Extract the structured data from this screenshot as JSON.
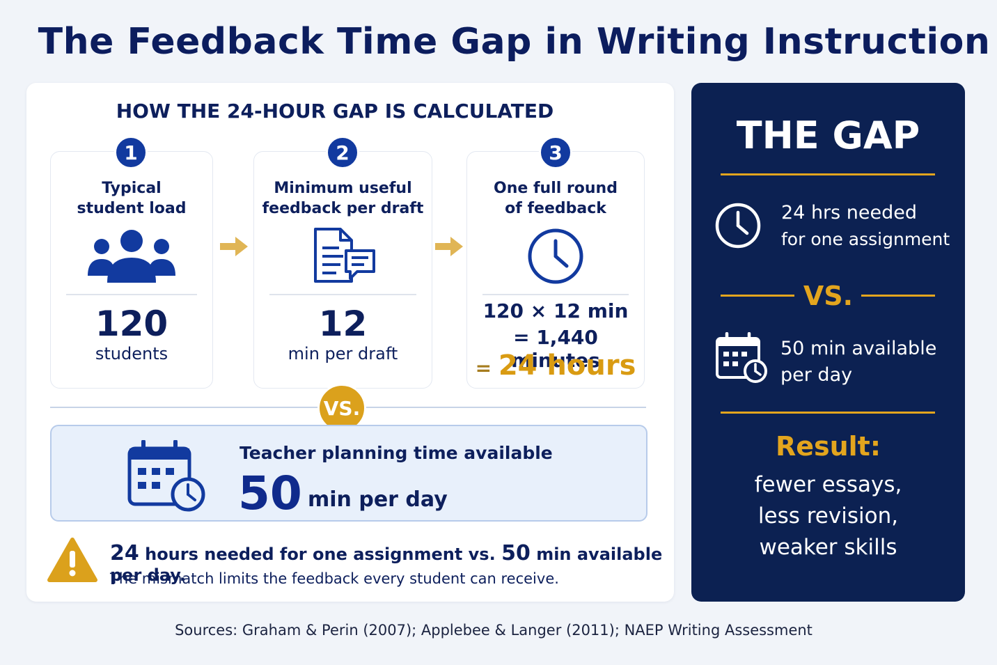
{
  "title": "The Feedback Time Gap in Writing Instruction",
  "calc": {
    "heading": "HOW THE 24-HOUR GAP IS CALCULATED",
    "steps": [
      {
        "num": "1",
        "label_line1": "Typical",
        "label_line2": "student load",
        "icon": "people-icon",
        "value": "120",
        "unit": "students"
      },
      {
        "num": "2",
        "label_line1": "Minimum useful",
        "label_line2": "feedback per draft",
        "icon": "feedback-document-icon",
        "value": "12",
        "unit": "min per draft"
      },
      {
        "num": "3",
        "label_line1": "One full round",
        "label_line2": "of feedback",
        "icon": "clock-icon",
        "calc_line1": "120 × 12 min",
        "calc_line2": "= 1,440 minutes",
        "result_eq": "=",
        "result_value": "24 hours"
      }
    ],
    "vs": "VS.",
    "planning": {
      "label": "Teacher planning time available",
      "value": "50",
      "unit": "min per day",
      "icon": "calendar-clock-icon"
    },
    "warning": {
      "icon": "warning-icon",
      "num1": "24",
      "text1": "hours needed for one assignment vs.",
      "num2": "50",
      "text2": "min available per day.",
      "subtext": "The mismatch limits the feedback every student can receive."
    }
  },
  "gap": {
    "title": "THE GAP",
    "needed_line1": "24 hrs needed",
    "needed_line2": "for one assignment",
    "vs": "VS.",
    "available_line1": "50 min available",
    "available_line2": "per day",
    "result_label": "Result:",
    "result_line1": "fewer essays,",
    "result_line2": "less revision,",
    "result_line3": "weaker skills"
  },
  "sources": "Sources: Graham & Perin (2007); Applebee & Langer (2011); NAEP Writing Assessment",
  "colors": {
    "navy": "#0c2152",
    "accent_blue": "#123a9f",
    "gold": "#e3a51e",
    "background": "#f1f4f9"
  }
}
